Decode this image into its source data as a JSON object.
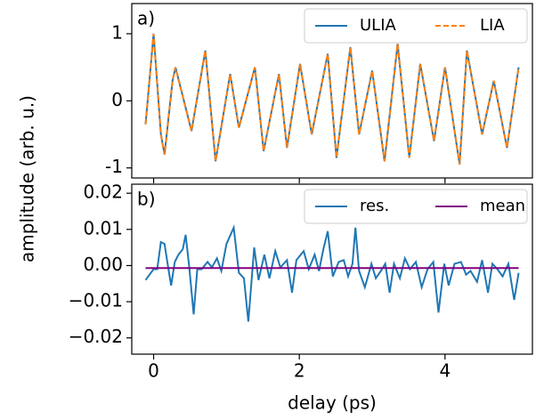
{
  "chart_data": [
    {
      "type": "line",
      "panel_label": "a)",
      "ylabel": "amplitude (arb. u.)",
      "xlim": [
        -0.3,
        5.2
      ],
      "xticks": [
        0,
        2,
        4
      ],
      "ylim": [
        -1.15,
        1.45
      ],
      "yticks": [
        -1,
        0,
        1
      ],
      "legend": "upper right",
      "series": [
        {
          "name": "ULIA",
          "color": "#1f77b4",
          "linestyle": "solid",
          "x": [
            -0.11,
            0,
            0.1,
            0.15,
            0.26,
            0.3,
            0.52,
            0.71,
            0.85,
            1.05,
            1.17,
            1.39,
            1.51,
            1.72,
            1.83,
            2.01,
            2.17,
            2.39,
            2.51,
            2.7,
            2.82,
            3.0,
            3.17,
            3.35,
            3.51,
            3.66,
            3.85,
            4.0,
            4.2,
            4.3,
            4.51,
            4.67,
            4.85,
            5.01
          ],
          "values": [
            -0.35,
            1.0,
            -0.5,
            -0.8,
            0.3,
            0.5,
            -0.45,
            0.75,
            -0.9,
            0.4,
            -0.4,
            0.5,
            -0.75,
            0.4,
            -0.7,
            0.55,
            -0.5,
            0.7,
            -0.85,
            0.8,
            -0.5,
            0.45,
            -0.9,
            0.85,
            -0.85,
            0.55,
            -0.6,
            0.5,
            -0.95,
            0.75,
            -0.5,
            0.3,
            -0.7,
            0.5
          ]
        },
        {
          "name": "LIA",
          "color": "#ff7f0e",
          "linestyle": "dashed",
          "x": [
            -0.11,
            0,
            0.1,
            0.15,
            0.26,
            0.3,
            0.52,
            0.71,
            0.85,
            1.05,
            1.17,
            1.39,
            1.51,
            1.72,
            1.83,
            2.01,
            2.17,
            2.39,
            2.51,
            2.7,
            2.82,
            3.0,
            3.17,
            3.35,
            3.51,
            3.66,
            3.85,
            4.0,
            4.2,
            4.3,
            4.51,
            4.67,
            4.85,
            5.01
          ],
          "values": [
            -0.35,
            1.0,
            -0.5,
            -0.8,
            0.3,
            0.5,
            -0.45,
            0.75,
            -0.9,
            0.4,
            -0.4,
            0.5,
            -0.75,
            0.4,
            -0.7,
            0.55,
            -0.5,
            0.7,
            -0.85,
            0.8,
            -0.5,
            0.45,
            -0.9,
            0.85,
            -0.85,
            0.55,
            -0.6,
            0.5,
            -0.95,
            0.75,
            -0.5,
            0.3,
            -0.7,
            0.5
          ]
        }
      ]
    },
    {
      "type": "line",
      "panel_label": "b)",
      "xlabel": "delay (ps)",
      "xlim": [
        -0.3,
        5.2
      ],
      "xticks": [
        0,
        2,
        4
      ],
      "ylim": [
        -0.0245,
        0.0225
      ],
      "yticks": [
        {
          "value": -0.02,
          "label": "−0.02"
        },
        {
          "value": -0.01,
          "label": "−0.01"
        },
        {
          "value": 0,
          "label": "0.00"
        },
        {
          "value": 0.01,
          "label": "0.01"
        },
        {
          "value": 0.02,
          "label": "0.02"
        }
      ],
      "legend": "upper right",
      "series": [
        {
          "name": "res.",
          "color": "#1f77b4",
          "linestyle": "solid",
          "x": [
            -0.11,
            0,
            0.05,
            0.1,
            0.15,
            0.2,
            0.24,
            0.29,
            0.34,
            0.4,
            0.44,
            0.49,
            0.55,
            0.6,
            0.66,
            0.74,
            0.8,
            0.87,
            0.93,
            1.0,
            1.1,
            1.17,
            1.24,
            1.3,
            1.38,
            1.44,
            1.52,
            1.59,
            1.67,
            1.74,
            1.83,
            1.9,
            1.96,
            2.06,
            2.13,
            2.21,
            2.27,
            2.33,
            2.39,
            2.46,
            2.54,
            2.61,
            2.67,
            2.73,
            2.77,
            2.82,
            2.9,
            2.99,
            3.05,
            3.12,
            3.18,
            3.24,
            3.3,
            3.38,
            3.45,
            3.52,
            3.6,
            3.68,
            3.76,
            3.84,
            3.91,
            3.99,
            4.05,
            4.13,
            4.22,
            4.29,
            4.35,
            4.44,
            4.51,
            4.59,
            4.65,
            4.72,
            4.79,
            4.87,
            4.95,
            5.01
          ],
          "values": [
            -0.004,
            -0.001,
            -0.001,
            0.0065,
            0.006,
            -0.0005,
            -0.0055,
            0.001,
            0.003,
            0.0045,
            0.0085,
            -0.0005,
            -0.0135,
            -0.001,
            -0.001,
            0.001,
            -0.0005,
            0.002,
            -0.0015,
            0.006,
            0.0105,
            -0.002,
            -0.0035,
            -0.0155,
            0.005,
            -0.004,
            0.003,
            -0.0035,
            0.004,
            -0.0005,
            0.0015,
            -0.0075,
            0.0015,
            0.004,
            -0.001,
            0.003,
            -0.0015,
            0.0045,
            0.0095,
            -0.003,
            0.001,
            0.0015,
            -0.003,
            0.0005,
            0.0105,
            -0.0015,
            -0.006,
            0.0005,
            -0.0035,
            -0.0015,
            0.0005,
            -0.0075,
            0.0005,
            -0.0035,
            0.002,
            -0.001,
            0.001,
            -0.006,
            -0.001,
            0.001,
            -0.013,
            0.0005,
            -0.0055,
            0.0005,
            0.001,
            -0.0025,
            -0.0015,
            -0.0045,
            0.0015,
            -0.0075,
            0.0005,
            -0.001,
            -0.003,
            0.0005,
            -0.0095,
            -0.002
          ]
        },
        {
          "name": "mean",
          "color": "#800080",
          "linestyle": "solid",
          "x": [
            -0.11,
            5.01
          ],
          "values": [
            -0.0007,
            -0.0007
          ]
        }
      ]
    }
  ]
}
